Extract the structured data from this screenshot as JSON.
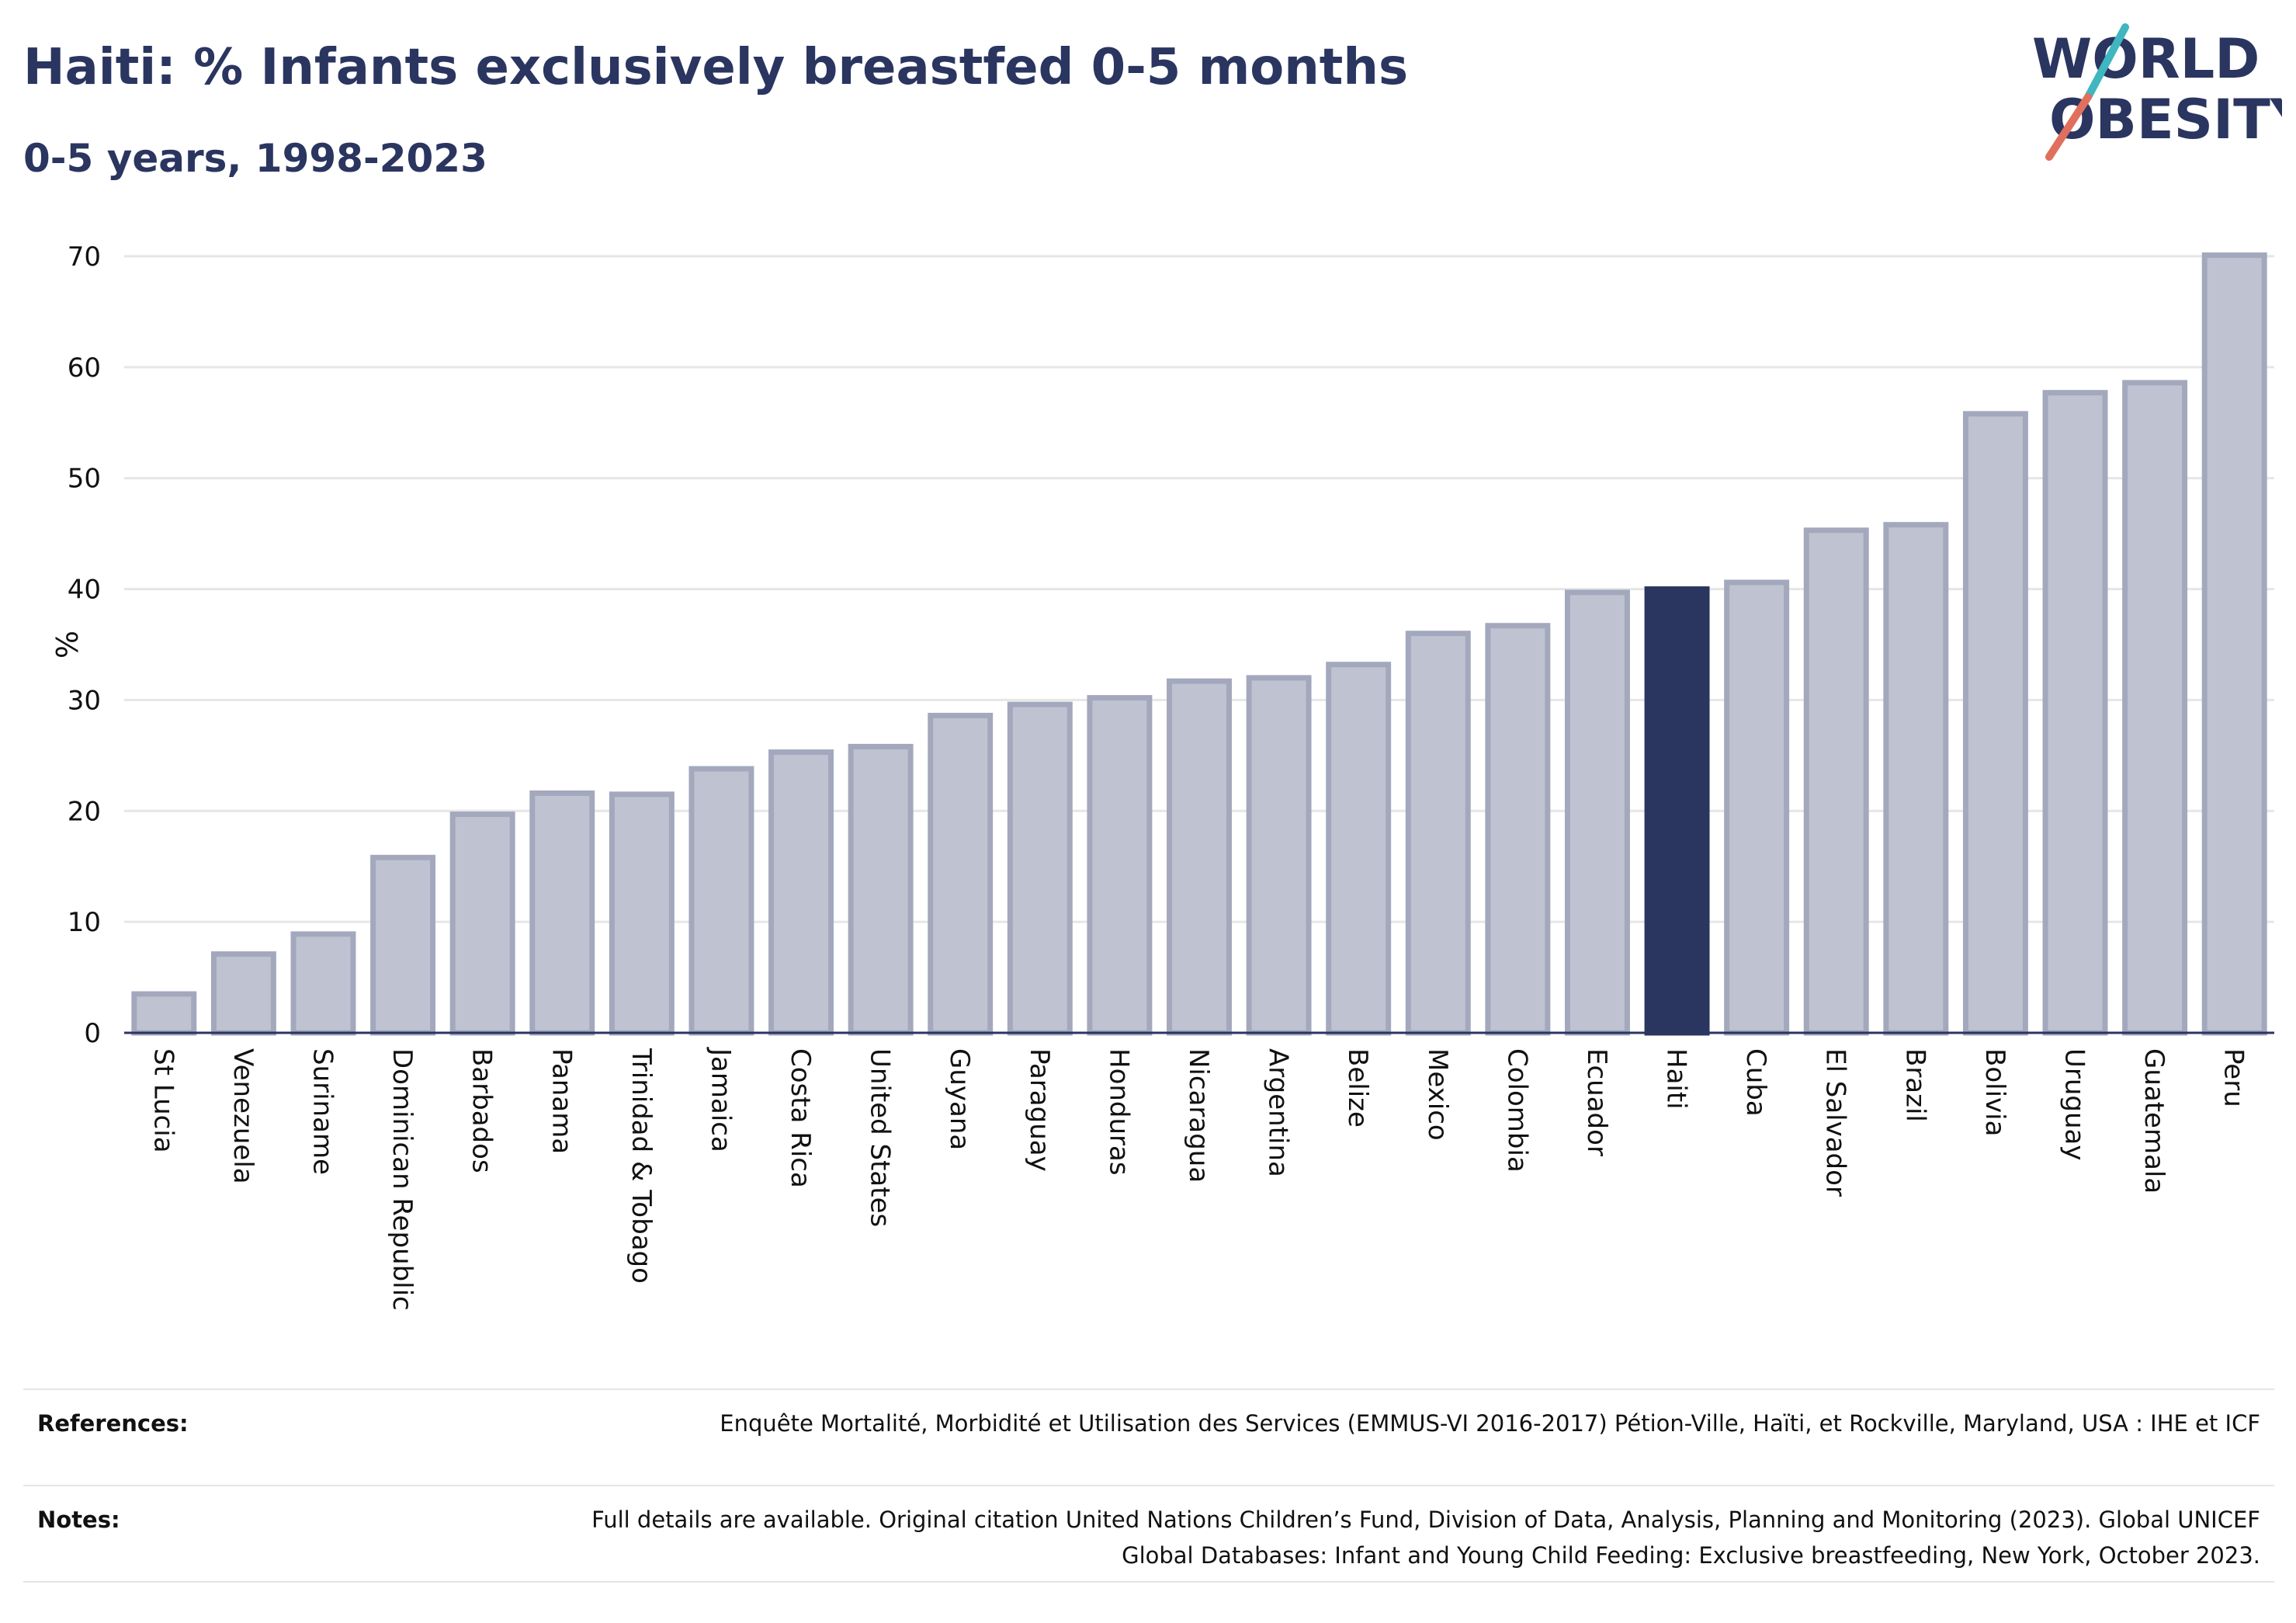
{
  "header": {
    "title": "Haiti: % Infants exclusively breastfed 0-5 months",
    "subtitle": "0-5 years, 1998-2023"
  },
  "logo": {
    "line1": "WORLD",
    "line2": "OBESITY",
    "accent_colors": [
      "#3fb6c0",
      "#e0705d"
    ]
  },
  "colors": {
    "bar_default": "#bfc3d1",
    "bar_border": "#a3a8bd",
    "bar_highlight": "#2a3560",
    "grid": "#e6e6e6",
    "baseline": "#2a3560"
  },
  "chart_data": {
    "type": "bar",
    "title": "Haiti: % Infants exclusively breastfed 0-5 months",
    "subtitle": "0-5 years, 1998-2023",
    "xlabel": "",
    "ylabel": "%",
    "ylim": [
      0,
      70
    ],
    "yticks": [
      0,
      10,
      20,
      30,
      40,
      50,
      60,
      70
    ],
    "grid": true,
    "highlight": "Haiti",
    "categories": [
      "St Lucia",
      "Venezuela",
      "Suriname",
      "Dominican Republic",
      "Barbados",
      "Panama",
      "Trinidad & Tobago",
      "Jamaica",
      "Costa Rica",
      "United States",
      "Guyana",
      "Paraguay",
      "Honduras",
      "Nicaragua",
      "Argentina",
      "Belize",
      "Mexico",
      "Colombia",
      "Ecuador",
      "Haiti",
      "Cuba",
      "El Salvador",
      "Brazil",
      "Bolivia",
      "Uruguay",
      "Guatemala",
      "Peru"
    ],
    "values": [
      3.5,
      7.1,
      8.9,
      15.8,
      19.7,
      21.6,
      21.5,
      23.8,
      25.3,
      25.8,
      28.6,
      29.6,
      30.2,
      31.7,
      32.0,
      33.2,
      36.0,
      36.7,
      39.7,
      40.0,
      40.6,
      45.3,
      45.8,
      55.8,
      57.7,
      58.6,
      70.1
    ]
  },
  "footer": {
    "references_label": "References:",
    "references_text": "Enquête Mortalité, Morbidité et Utilisation des Services (EMMUS-VI 2016-2017) Pétion-Ville, Haïti, et Rockville, Maryland, USA : IHE et ICF",
    "notes_label": "Notes:",
    "notes_text": "Full details are available. Original citation United Nations Children’s Fund, Division of Data, Analysis, Planning and Monitoring (2023). Global UNICEF Global Databases: Infant and Young Child Feeding: Exclusive breastfeeding, New York, October 2023."
  }
}
